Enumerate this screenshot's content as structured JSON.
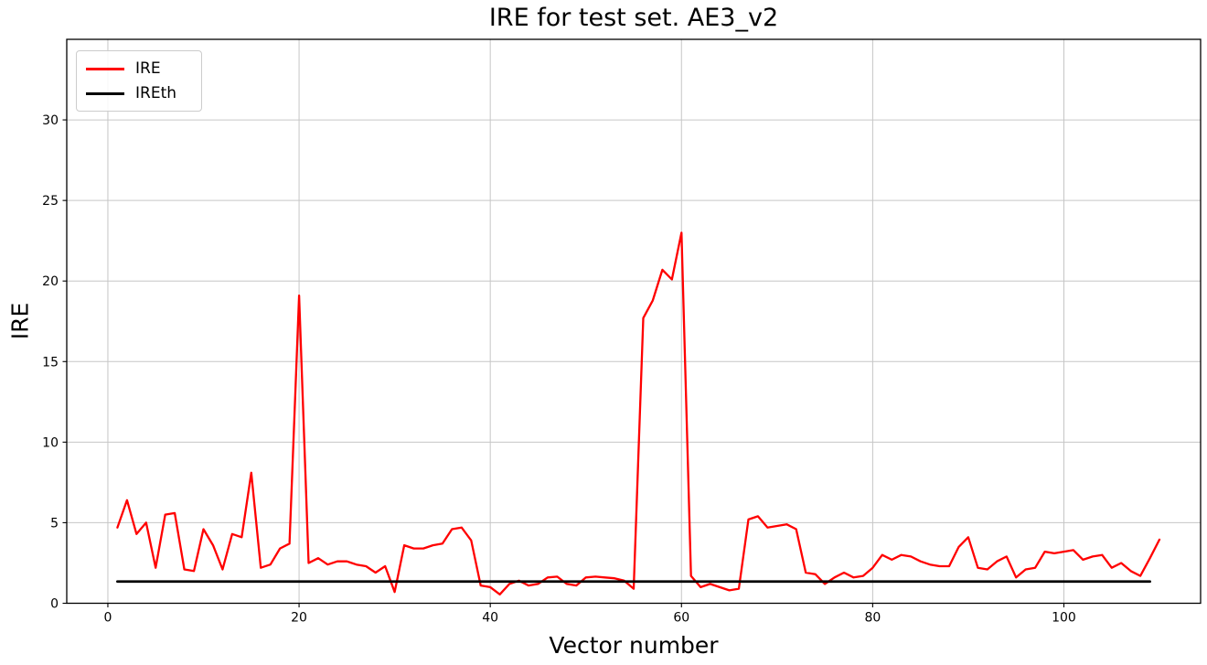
{
  "chart_data": {
    "type": "line",
    "title": "IRE for test set. AE3_v2",
    "xlabel": "Vector number",
    "ylabel": "IRE",
    "xlim": [
      -4.3,
      114.3
    ],
    "ylim": [
      0,
      35
    ],
    "xticks": [
      0,
      20,
      40,
      60,
      80,
      100
    ],
    "yticks": [
      0,
      5,
      10,
      15,
      20,
      25,
      30
    ],
    "grid": true,
    "grid_color": "#c6c6c6",
    "legend_position": "upper-left",
    "legend": [
      {
        "label": "IRE",
        "color": "#ff0000"
      },
      {
        "label": "IREth",
        "color": "#000000"
      }
    ],
    "series": [
      {
        "name": "IRE",
        "color": "#ff0000",
        "line_width": 2.3,
        "x_start": 1,
        "x_step": 1,
        "values": [
          4.7,
          6.4,
          4.3,
          5.0,
          2.2,
          5.5,
          5.6,
          2.1,
          2.0,
          4.6,
          3.6,
          2.1,
          4.3,
          4.1,
          8.1,
          2.2,
          2.4,
          3.4,
          3.7,
          19.1,
          2.5,
          2.8,
          2.4,
          2.6,
          2.6,
          2.4,
          2.3,
          1.9,
          2.3,
          0.7,
          3.6,
          3.4,
          3.4,
          3.6,
          3.7,
          4.6,
          4.7,
          3.9,
          1.1,
          1.0,
          0.55,
          1.2,
          1.4,
          1.1,
          1.2,
          1.6,
          1.65,
          1.2,
          1.1,
          1.6,
          1.65,
          1.6,
          1.55,
          1.4,
          0.9,
          17.7,
          18.8,
          20.7,
          20.1,
          23.0,
          1.7,
          1.0,
          1.2,
          1.0,
          0.8,
          0.9,
          5.2,
          5.4,
          4.7,
          4.8,
          4.9,
          4.6,
          1.9,
          1.8,
          1.2,
          1.6,
          1.9,
          1.6,
          1.7,
          2.2,
          3.0,
          2.7,
          3.0,
          2.9,
          2.6,
          2.4,
          2.3,
          2.3,
          3.5,
          4.1,
          2.2,
          2.1,
          2.6,
          2.9,
          1.6,
          2.1,
          2.2,
          3.2,
          3.1,
          3.2,
          3.3,
          2.7,
          2.9,
          3.0,
          2.2,
          2.5,
          2.0,
          1.7,
          2.8,
          3.95
        ]
      },
      {
        "name": "IREth",
        "color": "#000000",
        "line_width": 2.8,
        "x_start": 1,
        "x_end": 109,
        "constant": 1.35
      }
    ]
  }
}
